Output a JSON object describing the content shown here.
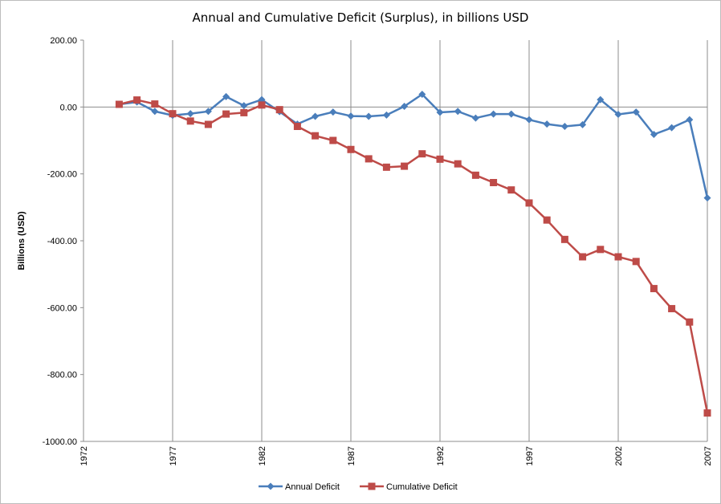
{
  "chart_data": {
    "type": "line",
    "title": "Annual and Cumulative Deficit (Surplus), in billions USD",
    "xlabel": "",
    "ylabel": "Billions (USD)",
    "xlim": [
      1972,
      2007
    ],
    "ylim": [
      -1000,
      200
    ],
    "x_ticks": [
      "1972",
      "1977",
      "1982",
      "1987",
      "1992",
      "1997",
      "2002",
      "2007"
    ],
    "y_ticks": [
      "200.00",
      "0.00",
      "-200.00",
      "-400.00",
      "-600.00",
      "-800.00",
      "-1000.00"
    ],
    "grid": "vertical",
    "legend_position": "bottom",
    "x": [
      1974,
      1975,
      1976,
      1977,
      1978,
      1979,
      1980,
      1981,
      1982,
      1983,
      1984,
      1985,
      1986,
      1987,
      1988,
      1989,
      1990,
      1991,
      1992,
      1993,
      1994,
      1995,
      1996,
      1997,
      1998,
      1999,
      2000,
      2001,
      2002,
      2003,
      2004,
      2005,
      2006,
      2007
    ],
    "series": [
      {
        "name": "Annual Deficit",
        "color": "#4a7ebb",
        "marker": "diamond",
        "values": [
          8,
          15,
          -13,
          -25,
          -20,
          -13,
          31,
          4,
          22,
          -14,
          -51,
          -28,
          -15,
          -27,
          -28,
          -24,
          2,
          38,
          -16,
          -13,
          -33,
          -21,
          -21,
          -38,
          -51,
          -58,
          -53,
          22,
          -22,
          -15,
          -82,
          -62,
          -38,
          -272
        ]
      },
      {
        "name": "Cumulative Deficit",
        "color": "#be4b48",
        "marker": "square",
        "values": [
          8,
          21,
          9,
          -20,
          -42,
          -52,
          -21,
          -17,
          6,
          -8,
          -58,
          -86,
          -100,
          -127,
          -155,
          -180,
          -177,
          -140,
          -156,
          -170,
          -204,
          -226,
          -248,
          -287,
          -338,
          -396,
          -448,
          -426,
          -448,
          -462,
          -543,
          -603,
          -643,
          -915
        ]
      }
    ]
  }
}
